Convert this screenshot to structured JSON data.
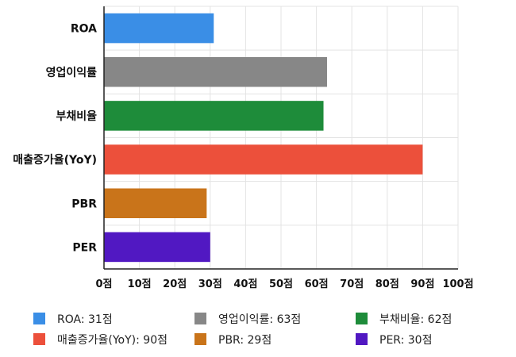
{
  "chart_data": {
    "type": "bar",
    "orientation": "horizontal",
    "title": "",
    "xlabel": "",
    "ylabel": "",
    "categories": [
      "ROA",
      "영업이익률",
      "부채비율",
      "매출증가율(YoY)",
      "PBR",
      "PER"
    ],
    "values": [
      31,
      63,
      62,
      90,
      29,
      30
    ],
    "colors": [
      "#3a8ee6",
      "#878787",
      "#1e8c3a",
      "#ec503b",
      "#c9741a",
      "#5118c2"
    ],
    "xlim": [
      0,
      100
    ],
    "x_ticks": [
      0,
      10,
      20,
      30,
      40,
      50,
      60,
      70,
      80,
      90,
      100
    ],
    "x_tick_labels": [
      "0점",
      "10점",
      "20점",
      "30점",
      "40점",
      "50점",
      "60점",
      "70점",
      "80점",
      "90점",
      "100점"
    ],
    "grid": true,
    "legend_position": "bottom",
    "legend": [
      "ROA: 31점",
      "영업이익률: 63점",
      "부채비율: 62점",
      "매출증가율(YoY): 90점",
      "PBR: 29점",
      "PER: 30점"
    ]
  }
}
